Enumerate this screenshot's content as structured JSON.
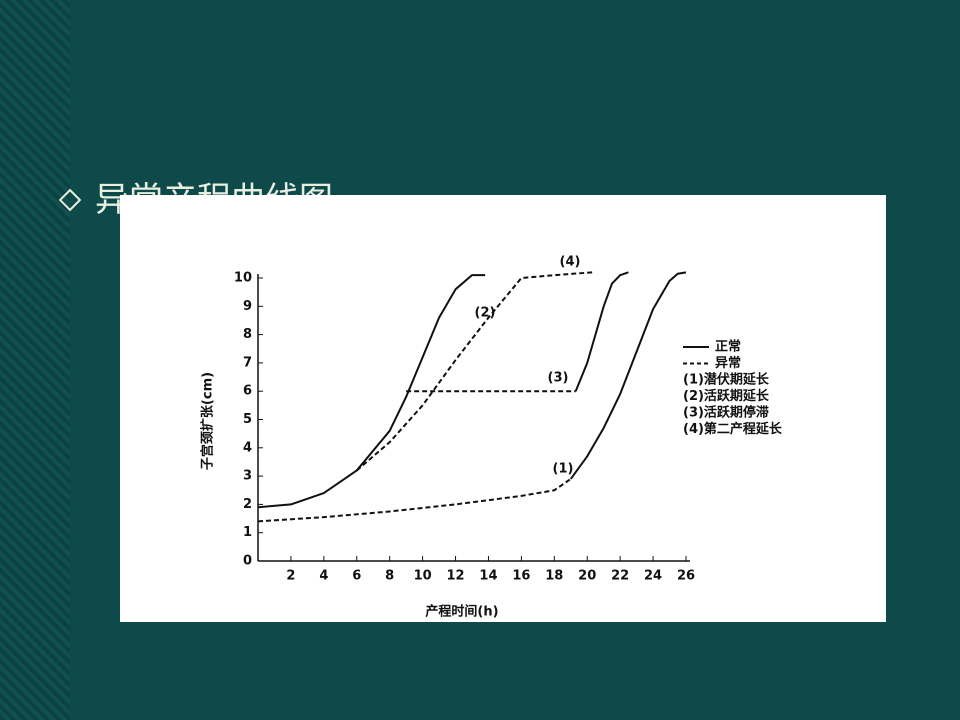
{
  "slide": {
    "title": "异常产程曲线图"
  },
  "chart_data": {
    "type": "line",
    "xlabel": "产程时间(h)",
    "ylabel": "子宫颈扩张(cm)",
    "xlim": [
      0,
      26
    ],
    "xticks": [
      2,
      4,
      6,
      8,
      10,
      12,
      14,
      16,
      18,
      20,
      22,
      24,
      26
    ],
    "ylim": [
      0,
      10
    ],
    "yticks": [
      0,
      1,
      2,
      3,
      4,
      5,
      6,
      7,
      8,
      9,
      10
    ],
    "series": [
      {
        "name": "正常",
        "color": "#111111",
        "dashed": false,
        "x": [
          0,
          2,
          4,
          6,
          8,
          9,
          10,
          11,
          12,
          13,
          13.8,
          16,
          19.3,
          20,
          20.5,
          21,
          21.5,
          22,
          22.5,
          23,
          19,
          20,
          21,
          22,
          23,
          24,
          25,
          25.5,
          26
        ],
        "values": [
          1.9,
          2,
          2.4,
          3.2,
          4.6,
          5.8,
          7.2,
          8.6,
          9.6,
          10.1,
          10.1,
          null,
          6,
          7,
          8,
          9,
          9.8,
          10.1,
          10.2,
          null,
          2.9,
          3.7,
          4.7,
          5.9,
          7.4,
          8.9,
          9.9,
          10.15,
          10.2
        ]
      },
      {
        "name": "异常",
        "color": "#111111",
        "dashed": true,
        "x": [
          0,
          4,
          8,
          12,
          16,
          18,
          19,
          19,
          9,
          19.3,
          19.3,
          6,
          8,
          10,
          12,
          14,
          16,
          18,
          20.3
        ],
        "values": [
          1.4,
          1.55,
          1.75,
          2,
          2.3,
          2.5,
          2.9,
          null,
          6,
          6,
          null,
          3.2,
          4.2,
          5.5,
          7.1,
          8.6,
          10,
          10.1,
          10.2
        ]
      }
    ],
    "legend_notes": [
      "(1)潜伏期延长",
      "(2)活跃期延长",
      "(3)活跃期停滞",
      "(4)第二产程延长"
    ],
    "annotations": [
      "(4)",
      "(2)",
      "(3)",
      "(1)"
    ]
  }
}
